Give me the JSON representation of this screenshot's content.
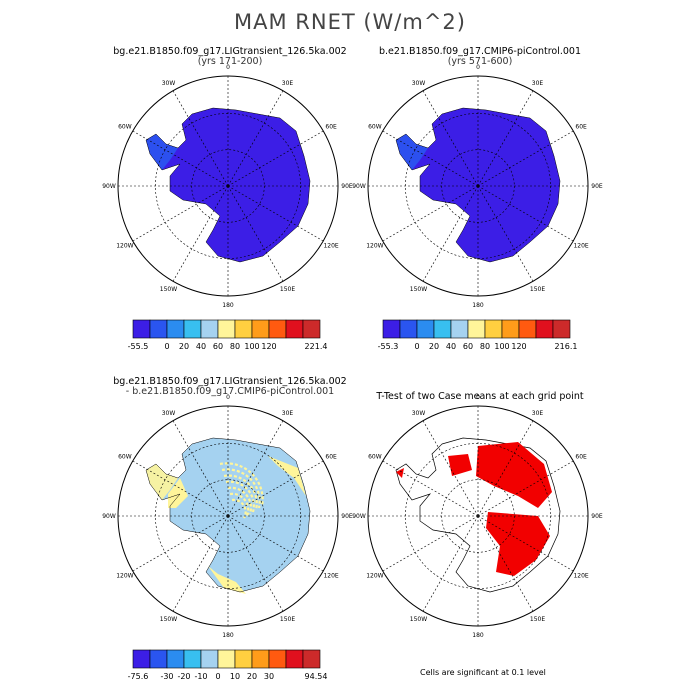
{
  "title": "MAM RNET (W/m^2)",
  "colors": {
    "background": "#ffffff",
    "land": "#3c1ee6",
    "significance": "#f20000",
    "grid": "#000000"
  },
  "panels": [
    {
      "title": "bg.e21.B1850.f09_g17.LIGtransient_126.5ka.002",
      "subtitle": "(yrs 171-200)",
      "fill": "#3c1ee6",
      "labelbar": {
        "min": "-55.5",
        "max": "221.4",
        "ticks": [
          "0",
          "20",
          "40",
          "60",
          "80",
          "100",
          "120"
        ]
      }
    },
    {
      "title": "b.e21.B1850.f09_g17.CMIP6-piControl.001",
      "subtitle": "(yrs 571-600)",
      "fill": "#3c1ee6",
      "labelbar": {
        "min": "-55.3",
        "max": "216.1",
        "ticks": [
          "0",
          "20",
          "40",
          "60",
          "80",
          "100",
          "120"
        ]
      }
    },
    {
      "title": "bg.e21.B1850.f09_g17.LIGtransient_126.5ka.002",
      "subtitle": "- b.e21.B1850.f09_g17.CMIP6-piControl.001",
      "fill": "#a5d2f0",
      "labelbar": {
        "min": "-75.6",
        "max": "94.54",
        "ticks": [
          "-30",
          "-20",
          "-10",
          "0",
          "10",
          "20",
          "30"
        ]
      }
    },
    {
      "title": "T-Test of two Case means at each grid point",
      "subtitle": "",
      "fill": "none"
    }
  ],
  "map_labels": {
    "top": "0",
    "bottom": "180",
    "left": "90W",
    "right": "90E",
    "upper_left": [
      "30W",
      "60W"
    ],
    "upper_right": [
      "30E",
      "60E"
    ],
    "lower_left": [
      "120W",
      "150W"
    ],
    "lower_right": [
      "120E",
      "150E"
    ]
  },
  "colorbar_colors": [
    "#3c1ee6",
    "#2a55f0",
    "#2b8cf0",
    "#38bff0",
    "#a5d2f0",
    "#fff59a",
    "#ffcf40",
    "#ff9c1a",
    "#ff5a10",
    "#e0101e",
    "#cc2a2a"
  ],
  "significance_note": "Cells are significant at 0.1 level",
  "chart_data": [
    {
      "type": "heatmap",
      "title": "bg.e21.B1850.f09_g17.LIGtransient_126.5ka.002",
      "subtitle": "(yrs 171-200)",
      "range": [
        -55.5,
        221.4
      ],
      "levels": [
        0,
        20,
        40,
        60,
        80,
        100,
        120
      ],
      "dominant_value_range": [
        -55.5,
        0
      ]
    },
    {
      "type": "heatmap",
      "title": "b.e21.B1850.f09_g17.CMIP6-piControl.001",
      "subtitle": "(yrs 571-600)",
      "range": [
        -55.3,
        216.1
      ],
      "levels": [
        0,
        20,
        40,
        60,
        80,
        100,
        120
      ],
      "dominant_value_range": [
        -55.3,
        0
      ]
    },
    {
      "type": "heatmap",
      "title": "bg.e21.B1850.f09_g17.LIGtransient_126.5ka.002 - b.e21.B1850.f09_g17.CMIP6-piControl.001",
      "range": [
        -75.6,
        94.54
      ],
      "levels": [
        -30,
        -20,
        -10,
        0,
        10,
        20,
        30
      ],
      "dominant_value_range": [
        -10,
        0
      ],
      "secondary_value_range": [
        0,
        10
      ]
    },
    {
      "type": "heatmap",
      "title": "T-Test of two Case means at each grid point",
      "note": "Cells are significant at 0.1 level"
    }
  ]
}
